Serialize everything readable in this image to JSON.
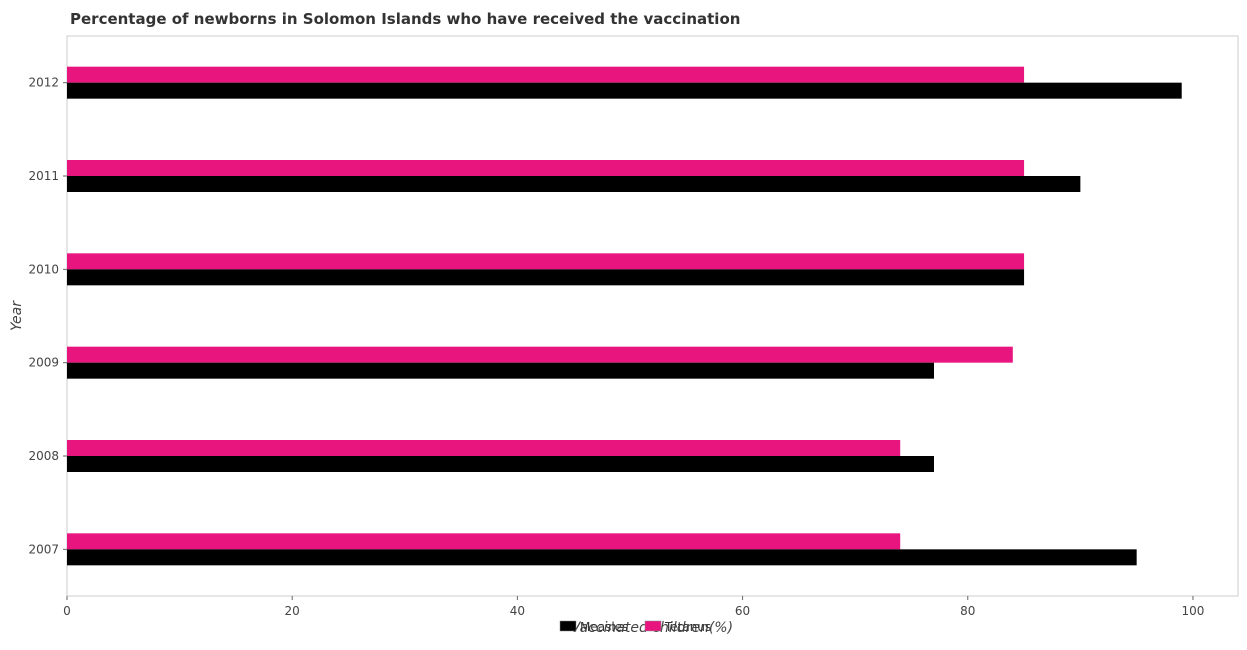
{
  "chart_data": {
    "type": "bar",
    "orientation": "horizontal",
    "title": "Percentage of newborns in Solomon Islands who have received the vaccination",
    "xlabel": "Vaccinated children(%)",
    "ylabel": "Year",
    "xlim": [
      0,
      104
    ],
    "xticks": [
      0,
      20,
      40,
      60,
      80,
      100
    ],
    "categories": [
      "2007",
      "2008",
      "2009",
      "2010",
      "2011",
      "2012"
    ],
    "series": [
      {
        "name": "Measles",
        "color": "#000000",
        "values": [
          95,
          77,
          77,
          85,
          90,
          99
        ]
      },
      {
        "name": "Tetanus",
        "color": "#e8157f",
        "values": [
          74,
          74,
          84,
          85,
          85,
          85
        ]
      }
    ],
    "legend_position": "bottom-center",
    "grid": false
  }
}
